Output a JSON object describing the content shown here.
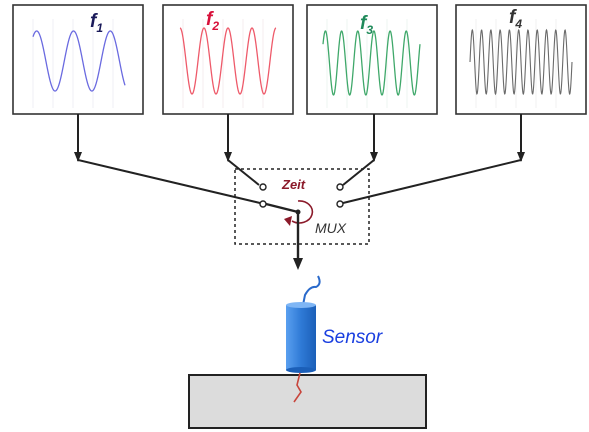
{
  "panels": [
    {
      "label": "f",
      "sub": "1",
      "cycles": 2.5,
      "wave_color": "#6a6ae0",
      "label_color": "#1a1a5a"
    },
    {
      "label": "f",
      "sub": "2",
      "cycles": 4,
      "wave_color": "#ee5a6a",
      "label_color": "#d8103a"
    },
    {
      "label": "f",
      "sub": "3",
      "cycles": 6,
      "wave_color": "#3fa86a",
      "label_color": "#1f8a5a"
    },
    {
      "label": "f",
      "sub": "4",
      "cycles": 11,
      "wave_color": "#6a6a6a",
      "label_color": "#333333"
    }
  ],
  "mux": {
    "label": "MUX",
    "time_label": "Zeit",
    "time_color": "#8b1a2a"
  },
  "sensor": {
    "label": "Sensor",
    "label_color": "#1a3fe0",
    "body_color": "#3b7fd8",
    "cable_color": "#2a6acb",
    "probe_color": "#c8453c"
  },
  "plate": {
    "fill": "#dcdcdc"
  }
}
